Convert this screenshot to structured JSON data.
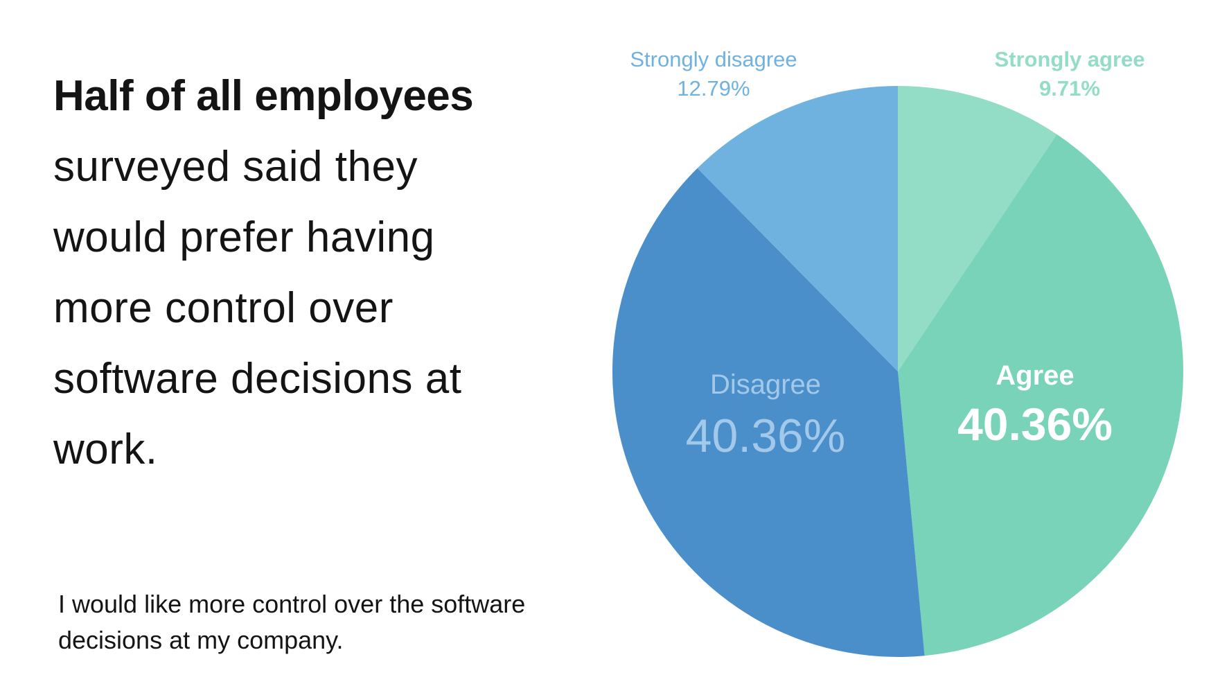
{
  "headline": {
    "bold": "Half of all employees",
    "rest": "surveyed said they would prefer having more control over software decisions at work."
  },
  "footnote": "I would like more control over the software decisions at my company.",
  "chart_data": {
    "type": "pie",
    "title": "",
    "start_angle_deg": 0,
    "direction": "clockwise",
    "slices": [
      {
        "name": "Strongly agree",
        "value": 9.71,
        "label": "9.71%",
        "color": "#93dcc6",
        "text_color": "#93dcc6"
      },
      {
        "name": "Agree",
        "value": 40.36,
        "label": "40.36%",
        "color": "#78d3b8",
        "text_color": "#ffffff"
      },
      {
        "name": "Disagree",
        "value": 40.36,
        "label": "40.36%",
        "color": "#4a8fca",
        "text_color": "#a3c9ea"
      },
      {
        "name": "Strongly disagree",
        "value": 12.79,
        "label": "12.79%",
        "color": "#70b2df",
        "text_color": "#70b2df"
      }
    ]
  }
}
